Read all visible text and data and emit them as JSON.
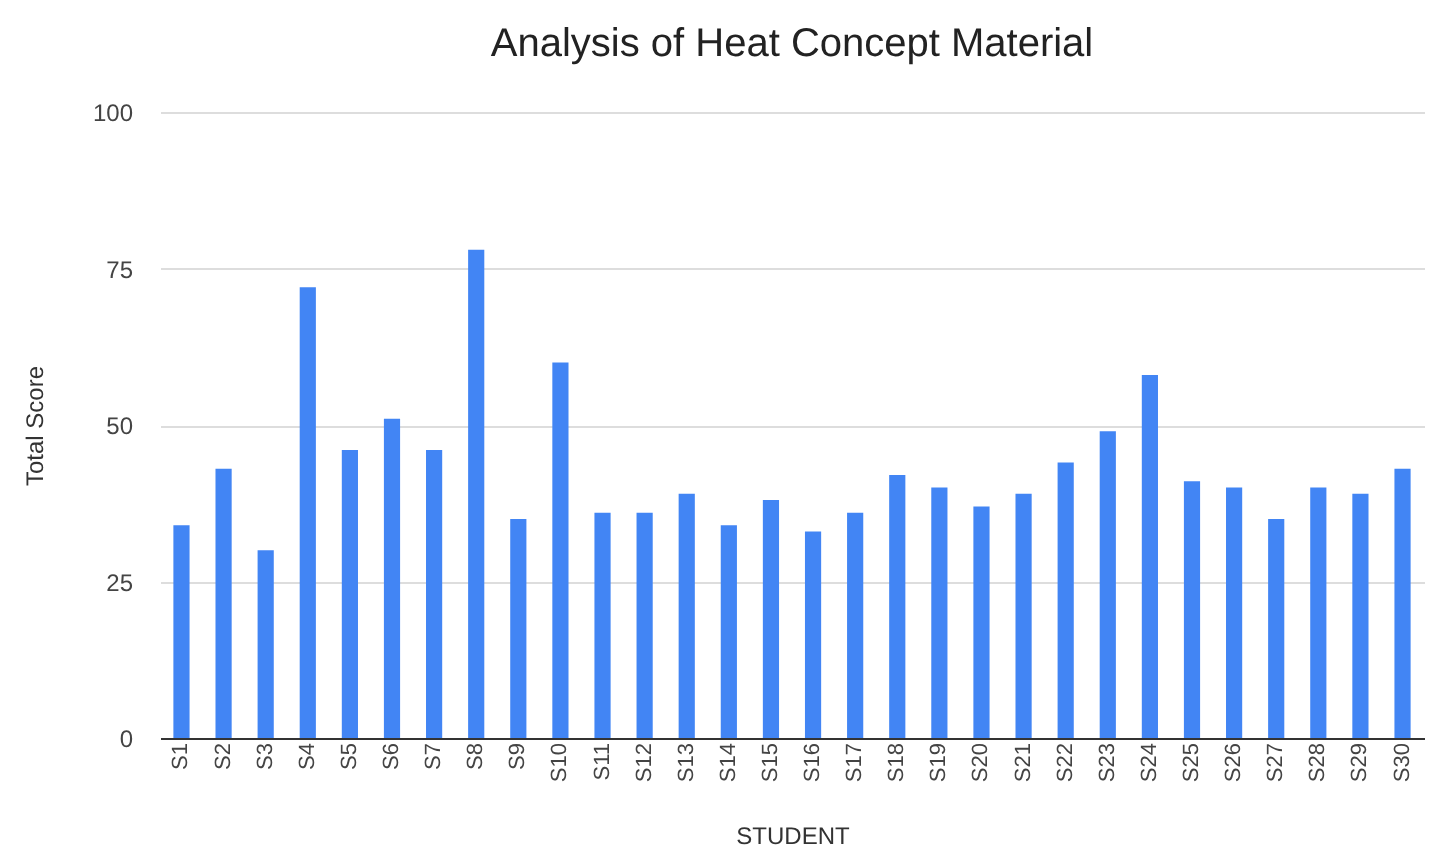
{
  "chart_data": {
    "type": "bar",
    "title": "Analysis of Heat Concept Material",
    "xlabel": "STUDENT",
    "ylabel": "Total Score",
    "categories": [
      "S1",
      "S2",
      "S3",
      "S4",
      "S5",
      "S6",
      "S7",
      "S8",
      "S9",
      "S10",
      "S11",
      "S12",
      "S13",
      "S14",
      "S15",
      "S16",
      "S17",
      "S18",
      "S19",
      "S20",
      "S21",
      "S22",
      "S23",
      "S24",
      "S25",
      "S26",
      "S27",
      "S28",
      "S29",
      "S30"
    ],
    "values": [
      34,
      43,
      30,
      72,
      46,
      51,
      46,
      78,
      35,
      60,
      36,
      36,
      39,
      34,
      38,
      33,
      36,
      42,
      40,
      37,
      39,
      44,
      49,
      58,
      41,
      40,
      35,
      40,
      39,
      43
    ],
    "color": "#4285f4",
    "ylim": [
      0,
      100
    ],
    "yticks": [
      0,
      25,
      50,
      75,
      100
    ],
    "grid": "y"
  }
}
